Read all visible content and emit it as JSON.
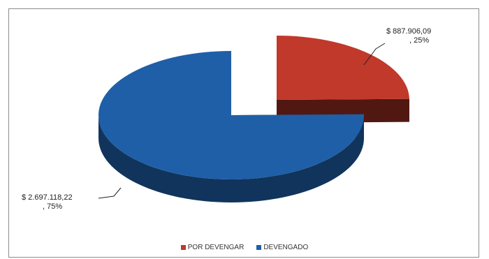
{
  "chart_data": {
    "type": "pie",
    "categories": [
      "POR DEVENGAR",
      "DEVENGADO"
    ],
    "values": [
      887906.09,
      2697118.22
    ],
    "percents": [
      25,
      75
    ],
    "data_labels": [
      {
        "value_text": "$ 887.906,09",
        "percent_text": ", 25%"
      },
      {
        "value_text": "$ 2.697.118,22",
        "percent_text": ", 75%"
      }
    ],
    "colors": [
      "#c0392b",
      "#1f5fa8"
    ],
    "legend_position": "bottom",
    "exploded_slice": "POR DEVENGAR",
    "three_d": true
  }
}
